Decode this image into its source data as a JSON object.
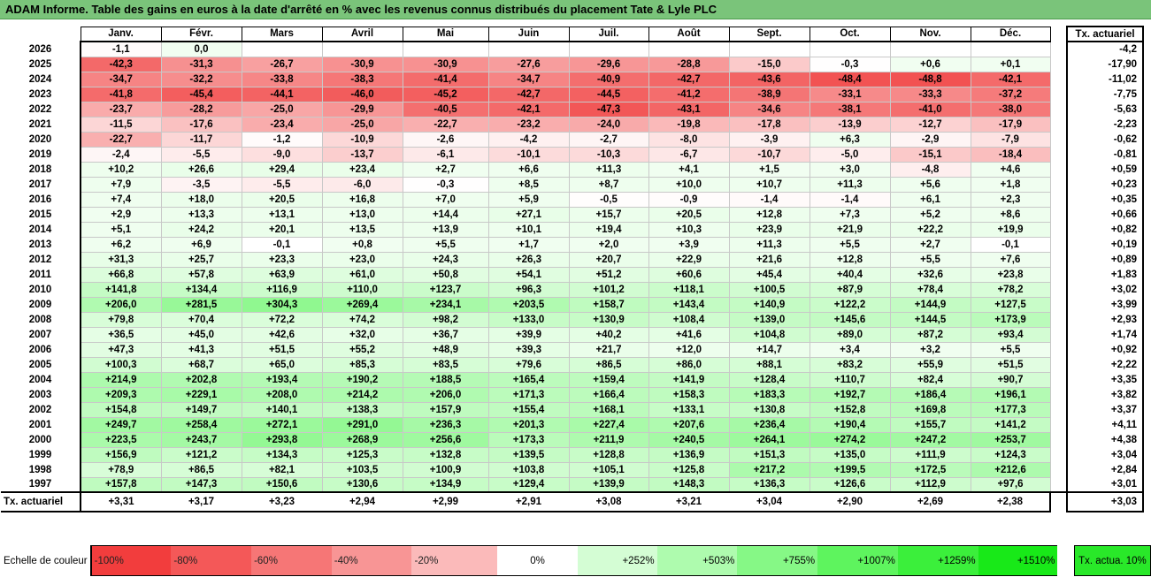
{
  "title": "ADAM Informe. Table des gains en euros à la date d'arrêté en % avec les revenus connus distribués du placement Tate & Lyle PLC",
  "months": [
    "Janv.",
    "Févr.",
    "Mars",
    "Avril",
    "Mai",
    "Juin",
    "Juil.",
    "Août",
    "Sept.",
    "Oct.",
    "Nov.",
    "Déc."
  ],
  "actuarial_header": "Tx. actuariel",
  "rows": [
    {
      "year": "2026",
      "values": [
        "-1,1",
        "0,0",
        "",
        "",
        "",
        "",
        "",
        "",
        "",
        "",
        "",
        ""
      ],
      "actuarial": "-4,2"
    },
    {
      "year": "2025",
      "values": [
        "-42,3",
        "-31,3",
        "-26,7",
        "-30,9",
        "-30,9",
        "-27,6",
        "-29,6",
        "-28,8",
        "-15,0",
        "-0,3",
        "+0,6",
        "+0,1"
      ],
      "actuarial": "-17,90"
    },
    {
      "year": "2024",
      "values": [
        "-34,7",
        "-32,2",
        "-33,8",
        "-38,3",
        "-41,4",
        "-34,7",
        "-40,9",
        "-42,7",
        "-43,6",
        "-48,4",
        "-48,8",
        "-42,1"
      ],
      "actuarial": "-11,02"
    },
    {
      "year": "2023",
      "values": [
        "-41,8",
        "-45,4",
        "-44,1",
        "-46,0",
        "-45,2",
        "-42,7",
        "-44,5",
        "-41,2",
        "-38,9",
        "-33,1",
        "-33,3",
        "-37,2"
      ],
      "actuarial": "-7,75"
    },
    {
      "year": "2022",
      "values": [
        "-23,7",
        "-28,2",
        "-25,0",
        "-29,9",
        "-40,5",
        "-42,1",
        "-47,3",
        "-43,1",
        "-34,6",
        "-38,1",
        "-41,0",
        "-38,0"
      ],
      "actuarial": "-5,63"
    },
    {
      "year": "2021",
      "values": [
        "-11,5",
        "-17,6",
        "-23,4",
        "-25,0",
        "-22,7",
        "-23,2",
        "-24,0",
        "-19,8",
        "-17,8",
        "-13,9",
        "-12,7",
        "-17,9"
      ],
      "actuarial": "-2,23"
    },
    {
      "year": "2020",
      "values": [
        "-22,7",
        "-11,7",
        "-1,2",
        "-10,9",
        "-2,6",
        "-4,2",
        "-2,7",
        "-8,0",
        "-3,9",
        "+6,3",
        "-2,9",
        "-7,9"
      ],
      "actuarial": "-0,62"
    },
    {
      "year": "2019",
      "values": [
        "-2,4",
        "-5,5",
        "-9,0",
        "-13,7",
        "-6,1",
        "-10,1",
        "-10,3",
        "-6,7",
        "-10,7",
        "-5,0",
        "-15,1",
        "-18,4"
      ],
      "actuarial": "-0,81"
    },
    {
      "year": "2018",
      "values": [
        "+10,2",
        "+26,6",
        "+29,4",
        "+23,4",
        "+2,7",
        "+6,6",
        "+11,3",
        "+4,1",
        "+1,5",
        "+3,0",
        "-4,8",
        "+4,6"
      ],
      "actuarial": "+0,59"
    },
    {
      "year": "2017",
      "values": [
        "+7,9",
        "-3,5",
        "-5,5",
        "-6,0",
        "-0,3",
        "+8,5",
        "+8,7",
        "+10,0",
        "+10,7",
        "+11,3",
        "+5,6",
        "+1,8"
      ],
      "actuarial": "+0,23"
    },
    {
      "year": "2016",
      "values": [
        "+7,4",
        "+18,0",
        "+20,5",
        "+16,8",
        "+7,0",
        "+5,9",
        "-0,5",
        "-0,9",
        "-1,4",
        "-1,4",
        "+6,1",
        "+2,3"
      ],
      "actuarial": "+0,35"
    },
    {
      "year": "2015",
      "values": [
        "+2,9",
        "+13,3",
        "+13,1",
        "+13,0",
        "+14,4",
        "+27,1",
        "+15,7",
        "+20,5",
        "+12,8",
        "+7,3",
        "+5,2",
        "+8,6"
      ],
      "actuarial": "+0,66"
    },
    {
      "year": "2014",
      "values": [
        "+5,1",
        "+24,2",
        "+20,1",
        "+13,5",
        "+13,9",
        "+10,1",
        "+19,4",
        "+10,3",
        "+23,9",
        "+21,9",
        "+22,2",
        "+19,9"
      ],
      "actuarial": "+0,82"
    },
    {
      "year": "2013",
      "values": [
        "+6,2",
        "+6,9",
        "-0,1",
        "+0,8",
        "+5,5",
        "+1,7",
        "+2,0",
        "+3,9",
        "+11,3",
        "+5,5",
        "+2,7",
        "-0,1"
      ],
      "actuarial": "+0,19"
    },
    {
      "year": "2012",
      "values": [
        "+31,3",
        "+25,7",
        "+23,3",
        "+23,0",
        "+24,3",
        "+26,3",
        "+20,7",
        "+22,9",
        "+21,6",
        "+12,8",
        "+5,5",
        "+7,6"
      ],
      "actuarial": "+0,89"
    },
    {
      "year": "2011",
      "values": [
        "+66,8",
        "+57,8",
        "+63,9",
        "+61,0",
        "+50,8",
        "+54,1",
        "+51,2",
        "+60,6",
        "+45,4",
        "+40,4",
        "+32,6",
        "+23,8"
      ],
      "actuarial": "+1,83"
    },
    {
      "year": "2010",
      "values": [
        "+141,8",
        "+134,4",
        "+116,9",
        "+110,0",
        "+123,7",
        "+96,3",
        "+101,2",
        "+118,1",
        "+100,5",
        "+87,9",
        "+78,4",
        "+78,2"
      ],
      "actuarial": "+3,02"
    },
    {
      "year": "2009",
      "values": [
        "+206,0",
        "+281,5",
        "+304,3",
        "+269,4",
        "+234,1",
        "+203,5",
        "+158,7",
        "+143,4",
        "+140,9",
        "+122,2",
        "+144,9",
        "+127,5"
      ],
      "actuarial": "+3,99"
    },
    {
      "year": "2008",
      "values": [
        "+79,8",
        "+70,4",
        "+72,2",
        "+74,2",
        "+98,2",
        "+133,0",
        "+130,9",
        "+108,4",
        "+139,0",
        "+145,6",
        "+144,5",
        "+173,9"
      ],
      "actuarial": "+2,93"
    },
    {
      "year": "2007",
      "values": [
        "+36,5",
        "+45,0",
        "+42,6",
        "+32,0",
        "+36,7",
        "+39,9",
        "+40,2",
        "+41,6",
        "+104,8",
        "+89,0",
        "+87,2",
        "+93,4"
      ],
      "actuarial": "+1,74"
    },
    {
      "year": "2006",
      "values": [
        "+47,3",
        "+41,3",
        "+51,5",
        "+55,2",
        "+48,9",
        "+39,3",
        "+21,7",
        "+12,0",
        "+14,7",
        "+3,4",
        "+3,2",
        "+5,5"
      ],
      "actuarial": "+0,92"
    },
    {
      "year": "2005",
      "values": [
        "+100,3",
        "+68,7",
        "+65,0",
        "+85,3",
        "+83,5",
        "+79,6",
        "+86,5",
        "+86,0",
        "+88,1",
        "+83,2",
        "+55,9",
        "+51,5"
      ],
      "actuarial": "+2,22"
    },
    {
      "year": "2004",
      "values": [
        "+214,9",
        "+202,8",
        "+193,4",
        "+190,2",
        "+188,5",
        "+165,4",
        "+159,4",
        "+141,9",
        "+128,4",
        "+110,7",
        "+82,4",
        "+90,7"
      ],
      "actuarial": "+3,35"
    },
    {
      "year": "2003",
      "values": [
        "+209,3",
        "+229,1",
        "+208,0",
        "+214,2",
        "+206,0",
        "+171,3",
        "+166,4",
        "+158,3",
        "+183,3",
        "+192,7",
        "+186,4",
        "+196,1"
      ],
      "actuarial": "+3,82"
    },
    {
      "year": "2002",
      "values": [
        "+154,8",
        "+149,7",
        "+140,1",
        "+138,3",
        "+157,9",
        "+155,4",
        "+168,1",
        "+133,1",
        "+130,8",
        "+152,8",
        "+169,8",
        "+177,3"
      ],
      "actuarial": "+3,37"
    },
    {
      "year": "2001",
      "values": [
        "+249,7",
        "+258,4",
        "+272,1",
        "+291,0",
        "+236,3",
        "+201,3",
        "+227,4",
        "+207,6",
        "+236,4",
        "+190,4",
        "+155,7",
        "+141,2"
      ],
      "actuarial": "+4,11"
    },
    {
      "year": "2000",
      "values": [
        "+223,5",
        "+243,7",
        "+293,8",
        "+268,9",
        "+256,6",
        "+173,3",
        "+211,9",
        "+240,5",
        "+264,1",
        "+274,2",
        "+247,2",
        "+253,7"
      ],
      "actuarial": "+4,38"
    },
    {
      "year": "1999",
      "values": [
        "+156,9",
        "+121,2",
        "+134,3",
        "+125,3",
        "+132,8",
        "+139,5",
        "+128,8",
        "+136,9",
        "+151,3",
        "+135,0",
        "+111,9",
        "+124,3"
      ],
      "actuarial": "+3,04"
    },
    {
      "year": "1998",
      "values": [
        "+78,9",
        "+86,5",
        "+82,1",
        "+103,5",
        "+100,9",
        "+103,8",
        "+105,1",
        "+125,8",
        "+217,2",
        "+199,5",
        "+172,5",
        "+212,6"
      ],
      "actuarial": "+2,84"
    },
    {
      "year": "1997",
      "values": [
        "+157,8",
        "+147,3",
        "+150,6",
        "+130,6",
        "+134,9",
        "+129,4",
        "+139,9",
        "+148,3",
        "+136,3",
        "+126,6",
        "+112,9",
        "+97,6"
      ],
      "actuarial": "+3,01"
    }
  ],
  "summary": {
    "label": "Tx. actuariel",
    "values": [
      "+3,31",
      "+3,17",
      "+3,23",
      "+2,94",
      "+2,99",
      "+2,91",
      "+3,08",
      "+3,21",
      "+3,04",
      "+2,90",
      "+2,69",
      "+2,38"
    ],
    "total": "+3,03"
  },
  "legend": {
    "label": "Echelle de couleur",
    "actuarial_label": "Tx. actua. 10%",
    "steps": [
      {
        "label": "-100%",
        "color": "#f23d3d",
        "kind": "neg"
      },
      {
        "label": "-80%",
        "color": "#f45858",
        "kind": "neg"
      },
      {
        "label": "-60%",
        "color": "#f67676",
        "kind": "neg"
      },
      {
        "label": "-40%",
        "color": "#f89595",
        "kind": "neg"
      },
      {
        "label": "-20%",
        "color": "#fbbaba",
        "kind": "neg"
      },
      {
        "label": "0%",
        "color": "#ffffff",
        "kind": "zero"
      },
      {
        "label": "+252%",
        "color": "#d4fdd4",
        "kind": "pos"
      },
      {
        "label": "+503%",
        "color": "#aefbae",
        "kind": "pos"
      },
      {
        "label": "+755%",
        "color": "#86f886",
        "kind": "pos"
      },
      {
        "label": "+1007%",
        "color": "#5ef45e",
        "kind": "pos"
      },
      {
        "label": "+1259%",
        "color": "#3bef3b",
        "kind": "pos"
      },
      {
        "label": "+1510%",
        "color": "#18e918",
        "kind": "pos"
      }
    ]
  },
  "colors": {
    "title_bg": "#7ac47a",
    "negative_max": "#f03c3c",
    "positive_max": "#1ee91e"
  }
}
